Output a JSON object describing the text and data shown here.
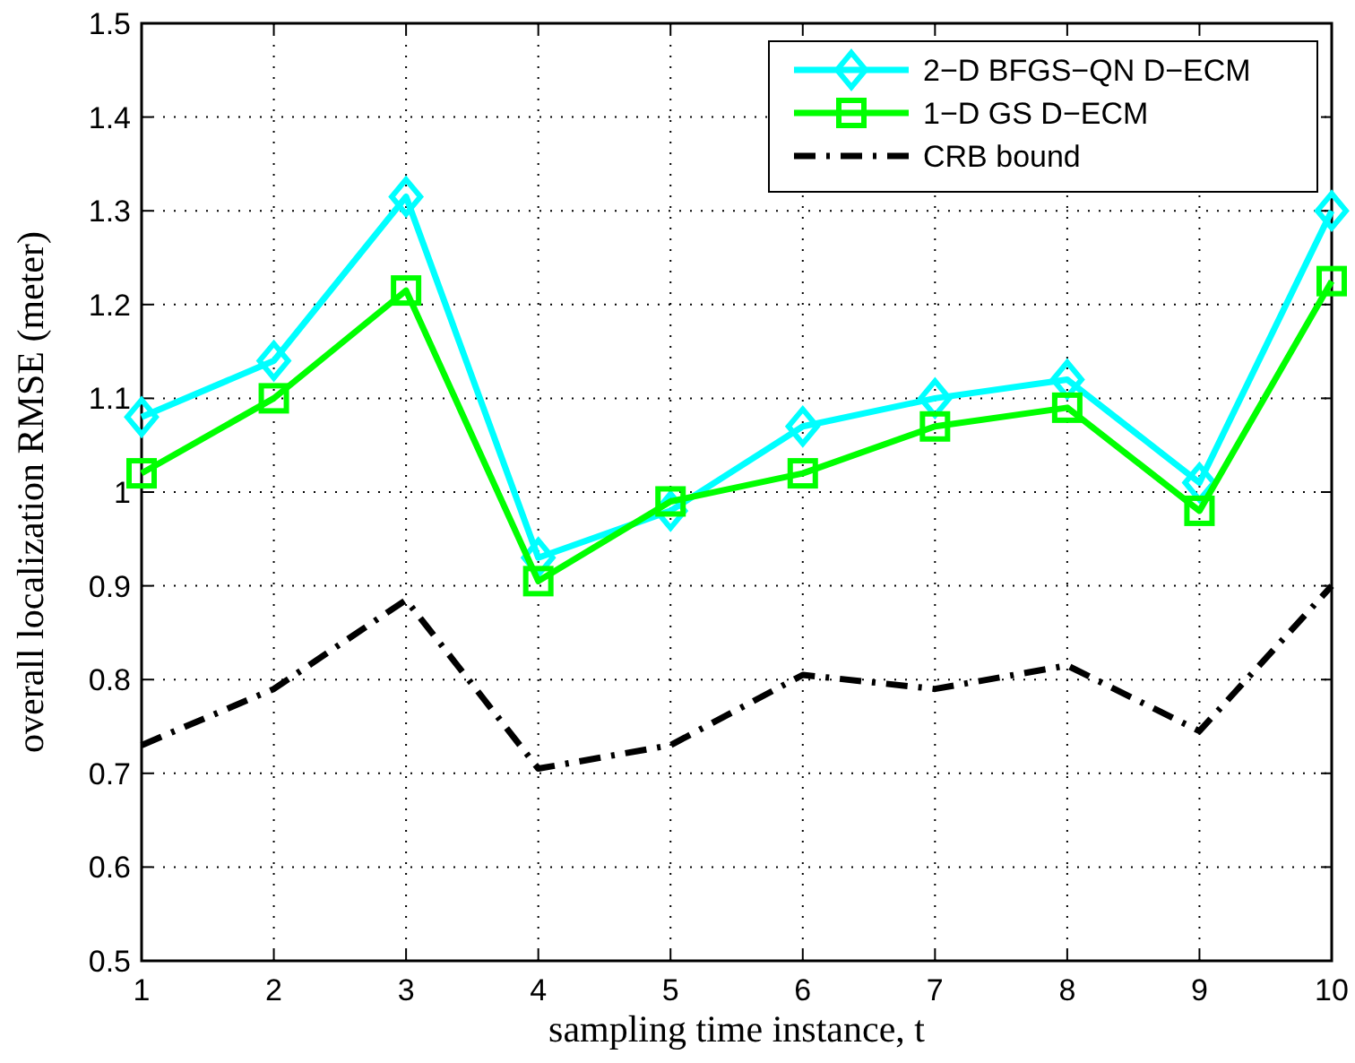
{
  "chart_data": {
    "type": "line",
    "xlabel": "sampling time instance, t",
    "ylabel": "overall localization RMSE (meter)",
    "x": [
      1,
      2,
      3,
      4,
      5,
      6,
      7,
      8,
      9,
      10
    ],
    "xlim": [
      1,
      10
    ],
    "xticks": [
      1,
      2,
      3,
      4,
      5,
      6,
      7,
      8,
      9,
      10
    ],
    "ylim": [
      0.5,
      1.5
    ],
    "yticks": [
      0.5,
      0.6,
      0.7,
      0.8,
      0.9,
      1,
      1.1,
      1.2,
      1.3,
      1.4,
      1.5
    ],
    "grid": true,
    "legend": "top right",
    "series": [
      {
        "name": "2−D BFGS−QN D−ECM",
        "color": "#00ffff",
        "marker": "diamond",
        "line_style": "solid",
        "values": [
          1.08,
          1.14,
          1.315,
          0.93,
          0.98,
          1.07,
          1.1,
          1.12,
          1.01,
          1.3
        ]
      },
      {
        "name": "1−D GS D−ECM",
        "color": "#00ff00",
        "marker": "square",
        "line_style": "solid",
        "values": [
          1.02,
          1.1,
          1.215,
          0.905,
          0.99,
          1.02,
          1.07,
          1.09,
          0.98,
          1.225
        ]
      },
      {
        "name": "CRB bound",
        "color": "#000000",
        "marker": "none",
        "line_style": "dashdot",
        "values": [
          0.73,
          0.79,
          0.885,
          0.705,
          0.73,
          0.805,
          0.79,
          0.815,
          0.745,
          0.9
        ]
      }
    ]
  }
}
